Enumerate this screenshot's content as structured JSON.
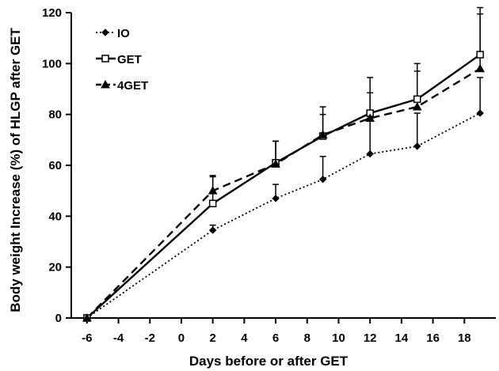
{
  "chart_data": {
    "type": "line",
    "title": "",
    "xlabel": "Days before or after GET",
    "ylabel": "Body weight Increase (%) of HLGP after GET",
    "xlim": [
      -7,
      20
    ],
    "ylim": [
      0,
      120
    ],
    "xticks": [
      -6,
      -4,
      -2,
      0,
      2,
      4,
      6,
      8,
      10,
      12,
      14,
      16,
      18
    ],
    "yticks": [
      0,
      20,
      40,
      60,
      80,
      100,
      120
    ],
    "grid": false,
    "legend_position": "top-left",
    "series": [
      {
        "name": "IO",
        "style": "dotted",
        "marker": "diamond",
        "color": "#000000",
        "x": [
          -6,
          2,
          6,
          9,
          12,
          15,
          19
        ],
        "y": [
          0,
          34.5,
          47,
          54.5,
          64.5,
          67.5,
          80.5
        ],
        "err": [
          0,
          2,
          5.5,
          9,
          14,
          13,
          14
        ]
      },
      {
        "name": "GET",
        "style": "solid",
        "marker": "square",
        "color": "#000000",
        "x": [
          -6,
          2,
          6,
          9,
          12,
          15,
          19
        ],
        "y": [
          0,
          45,
          61,
          71.5,
          80.5,
          86,
          103.5
        ],
        "err": [
          0,
          10.5,
          8.5,
          11.5,
          14,
          14,
          16
        ]
      },
      {
        "name": "4GET",
        "style": "dashed",
        "marker": "triangle",
        "color": "#000000",
        "x": [
          -6,
          2,
          6,
          9,
          12,
          15,
          19
        ],
        "y": [
          0,
          50,
          60.5,
          72,
          78.5,
          83,
          98
        ],
        "err": [
          0,
          6,
          9,
          8,
          10,
          14,
          24
        ]
      }
    ]
  }
}
